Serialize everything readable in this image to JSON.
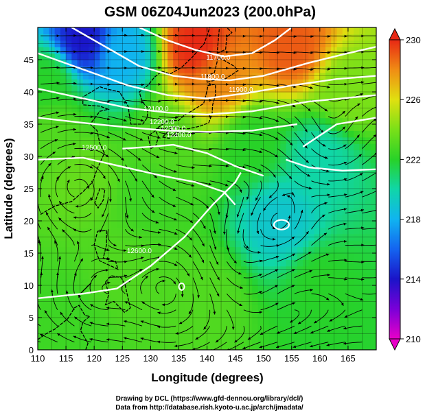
{
  "chart_data": {
    "type": "heatmap",
    "title": "GSM 06Z04Jun2023 (200.0hPa)",
    "xlabel": "Longitude (degrees)",
    "ylabel": "Latitude (degrees)",
    "xlim": [
      110,
      170
    ],
    "ylim": [
      0,
      50
    ],
    "x_ticks": [
      110,
      115,
      120,
      125,
      130,
      135,
      140,
      145,
      150,
      155,
      160,
      165
    ],
    "y_ticks": [
      0,
      5,
      10,
      15,
      20,
      25,
      30,
      35,
      40,
      45
    ],
    "grid": true,
    "colorbar": {
      "min": 210,
      "max": 230,
      "ticks": [
        210,
        214,
        218,
        222,
        226,
        230
      ],
      "placement": "right"
    },
    "temperature_features": [
      {
        "lon": 138,
        "lat": 47,
        "value": 230
      },
      {
        "lon": 155,
        "lat": 47,
        "value": 229
      },
      {
        "lon": 142,
        "lat": 42,
        "value": 228
      },
      {
        "lon": 118,
        "lat": 48,
        "value": 214
      },
      {
        "lon": 125,
        "lat": 46,
        "value": 218
      },
      {
        "lon": 112,
        "lat": 42,
        "value": 222
      },
      {
        "lon": 113,
        "lat": 34,
        "value": 223
      },
      {
        "lon": 118,
        "lat": 27,
        "value": 223.5
      },
      {
        "lon": 133,
        "lat": 32,
        "value": 223
      },
      {
        "lon": 130,
        "lat": 24,
        "value": 222.5
      },
      {
        "lon": 160,
        "lat": 30,
        "value": 220
      },
      {
        "lon": 153,
        "lat": 20,
        "value": 219
      },
      {
        "lon": 125,
        "lat": 12,
        "value": 223
      },
      {
        "lon": 115,
        "lat": 5,
        "value": 222.5
      },
      {
        "lon": 140,
        "lat": 8,
        "value": 223
      },
      {
        "lon": 160,
        "lat": 10,
        "value": 222
      },
      {
        "lon": 165,
        "lat": 40,
        "value": 224
      },
      {
        "lon": 148,
        "lat": 32,
        "value": 222
      }
    ],
    "height_contours": [
      {
        "label": "11700.0",
        "lon": 142,
        "lat": 45
      },
      {
        "label": "11800.0",
        "lon": 141,
        "lat": 42
      },
      {
        "label": "11900.0",
        "lon": 146,
        "lat": 40
      },
      {
        "label": "12100.0",
        "lon": 131,
        "lat": 37
      },
      {
        "label": "12200.0",
        "lon": 132,
        "lat": 35
      },
      {
        "label": "12300.0",
        "lon": 134,
        "lat": 34
      },
      {
        "label": "12400.0",
        "lon": 135,
        "lat": 33
      },
      {
        "label": "12500.0",
        "lon": 120,
        "lat": 31
      },
      {
        "label": "12600.0",
        "lon": 128,
        "lat": 15
      }
    ],
    "wind_vectors": "streamlines with arrows over the whole field"
  },
  "credits": {
    "line1": "Drawing by DCL (https://www.gfd-dennou.org/library/dcl/)",
    "line2": "Data from http://database.rish.kyoto-u.ac.jp/arch/jmadata/"
  },
  "colors": {
    "frame": "#000000",
    "contour": "#ffffff",
    "streamline": "#000000",
    "coastline": "#000000"
  }
}
